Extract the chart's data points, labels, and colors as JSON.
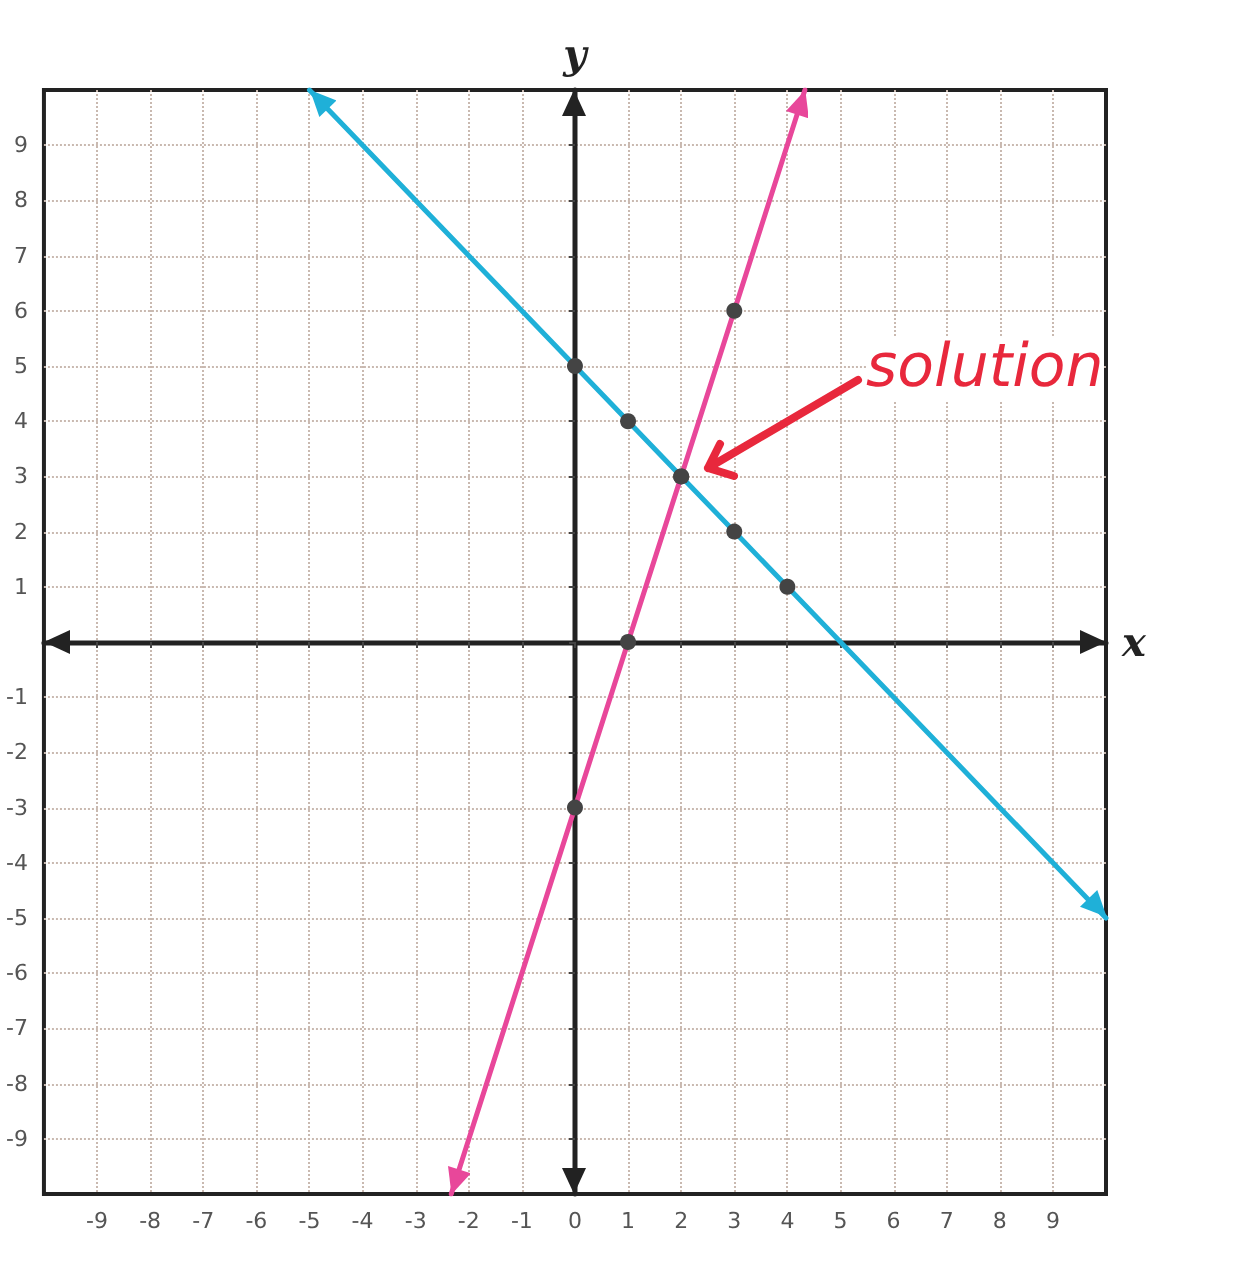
{
  "chart_data": {
    "type": "line",
    "xlabel": "x",
    "ylabel": "y",
    "xlim": [
      -10,
      10
    ],
    "ylim": [
      -10,
      10
    ],
    "xticks": [
      -9,
      -8,
      -7,
      -6,
      -5,
      -4,
      -3,
      -2,
      -1,
      0,
      1,
      2,
      3,
      4,
      5,
      6,
      7,
      8,
      9
    ],
    "yticks": [
      -9,
      -8,
      -7,
      -6,
      -5,
      -4,
      -3,
      -2,
      -1,
      {
        "value": 0,
        "label": null
      },
      1,
      2,
      3,
      4,
      5,
      6,
      7,
      8,
      9
    ],
    "grid": true,
    "marker": "circle",
    "line_style": "solid",
    "series": [
      {
        "color": "#1fb0d8",
        "x": [
          -5,
          0,
          1,
          2,
          3,
          4,
          10
        ],
        "values": [
          10,
          5,
          4,
          3,
          2,
          1,
          -5
        ]
      },
      {
        "color": "#e8479a",
        "x": [
          -2.33,
          0,
          1,
          2,
          3,
          4.33
        ],
        "values": [
          -10,
          -3,
          0,
          3,
          6,
          10
        ]
      }
    ],
    "annotations": [
      "solution"
    ]
  }
}
